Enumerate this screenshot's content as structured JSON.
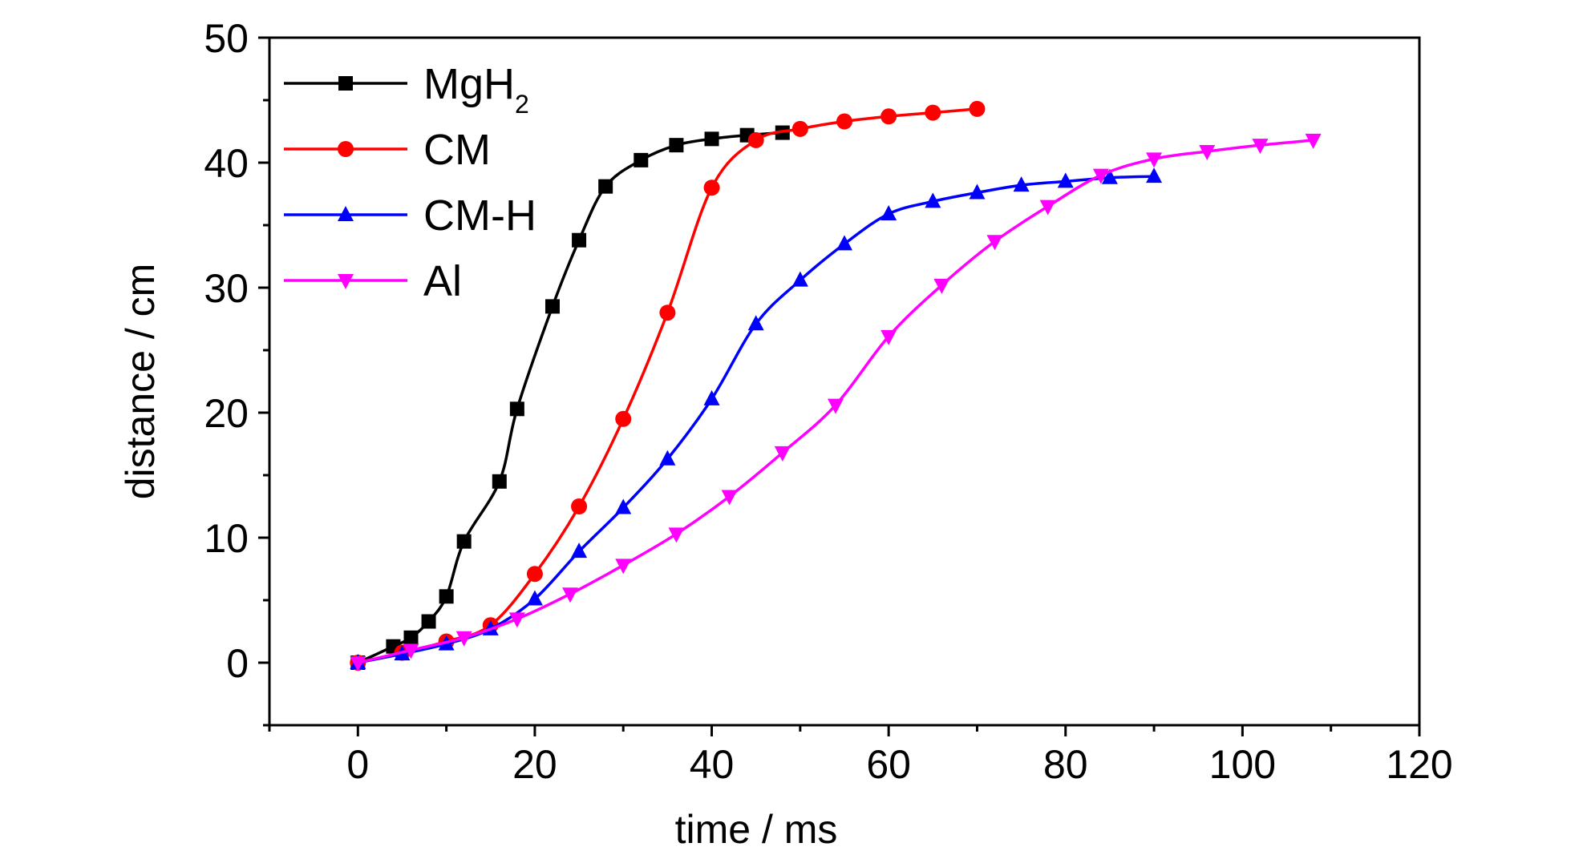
{
  "chart_data": {
    "type": "line",
    "title": "",
    "xlabel": "time / ms",
    "ylabel": "distance / cm",
    "xlim": [
      -10,
      120
    ],
    "ylim": [
      -5,
      50
    ],
    "xticks": [
      0,
      20,
      40,
      60,
      80,
      100,
      120
    ],
    "yticks": [
      0,
      10,
      20,
      30,
      40,
      50
    ],
    "grid": false,
    "legend_position": "top-left",
    "series": [
      {
        "name": "MgH",
        "name_subscript": "2",
        "color": "#000000",
        "marker": "square",
        "x": [
          0,
          4,
          6,
          8,
          10,
          12,
          16,
          18,
          22,
          25,
          28,
          32,
          36,
          40,
          44,
          48
        ],
        "y": [
          0,
          1.3,
          2.0,
          3.3,
          5.3,
          9.7,
          14.5,
          20.3,
          28.5,
          33.8,
          38.1,
          40.2,
          41.4,
          41.9,
          42.2,
          42.4
        ]
      },
      {
        "name": "CM",
        "color": "#ff0000",
        "marker": "circle",
        "x": [
          0,
          5,
          10,
          15,
          20,
          25,
          30,
          35,
          40,
          45,
          50,
          55,
          60,
          65,
          70
        ],
        "y": [
          0,
          0.8,
          1.7,
          3.0,
          7.1,
          12.5,
          19.5,
          28.0,
          38.0,
          41.8,
          42.7,
          43.3,
          43.7,
          44.0,
          44.3
        ]
      },
      {
        "name": "CM-H",
        "color": "#0000ff",
        "marker": "triangle-up",
        "x": [
          0,
          5,
          10,
          15,
          20,
          25,
          30,
          35,
          40,
          45,
          50,
          55,
          60,
          65,
          70,
          75,
          80,
          85,
          90
        ],
        "y": [
          0,
          0.7,
          1.5,
          2.7,
          5.1,
          8.9,
          12.4,
          16.3,
          21.1,
          27.1,
          30.6,
          33.5,
          35.9,
          36.9,
          37.6,
          38.2,
          38.5,
          38.8,
          38.9
        ]
      },
      {
        "name": "Al",
        "color": "#ff00ff",
        "marker": "triangle-down",
        "x": [
          0,
          6,
          12,
          18,
          24,
          30,
          36,
          42,
          48,
          54,
          60,
          66,
          72,
          78,
          84,
          90,
          96,
          102,
          108
        ],
        "y": [
          0,
          1.0,
          2.0,
          3.5,
          5.5,
          7.8,
          10.3,
          13.3,
          16.8,
          20.6,
          26.1,
          30.2,
          33.7,
          36.5,
          39.0,
          40.3,
          40.9,
          41.4,
          41.8
        ]
      }
    ]
  }
}
